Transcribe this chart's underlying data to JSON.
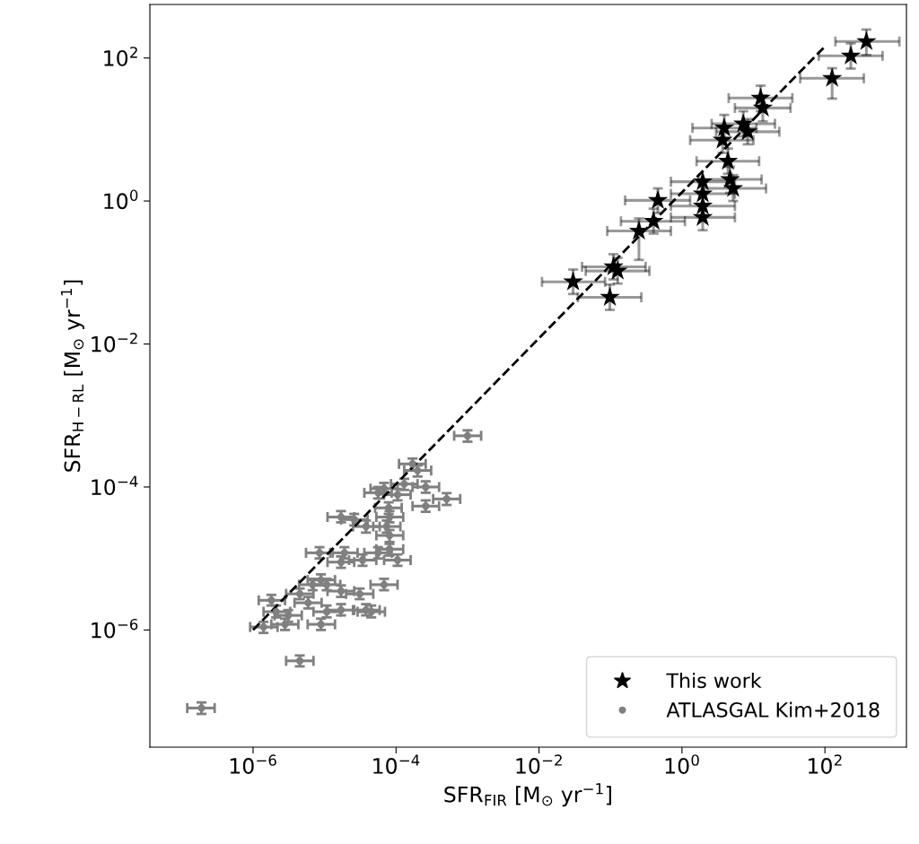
{
  "chart_data": {
    "type": "scatter",
    "xlabel": "SFR$_{FIR}$ [M$_{⊙}$ yr$^{−1}$]",
    "ylabel": "SFR$_{H−RL}$ [M$_{⊙}$ yr$^{−1}$]",
    "log": "xy",
    "legend": "bottom right",
    "xlim": [
      3.6e-08,
      1380
    ],
    "ylim": [
      2.3e-08,
      560
    ],
    "xticks": [
      {
        "value": 1e-06,
        "label": "10$^{−6}$"
      },
      {
        "value": 0.0001,
        "label": "10$^{−4}$"
      },
      {
        "value": 0.01,
        "label": "10$^{−2}$"
      },
      {
        "value": 1,
        "label": "10$^{0}$"
      },
      {
        "value": 100,
        "label": "10$^{2}$"
      }
    ],
    "yticks": [
      {
        "value": 1e-06,
        "label": "10$^{−6}$"
      },
      {
        "value": 0.0001,
        "label": "10$^{−4}$"
      },
      {
        "value": 0.01,
        "label": "10$^{−2}$"
      },
      {
        "value": 1,
        "label": "10$^{0}$"
      },
      {
        "value": 100,
        "label": "10$^{2}$"
      }
    ],
    "series": [
      {
        "name": "ATLASGAL Kim+2018",
        "marker": "circle",
        "color": "#808080",
        "x": [
          0.001,
          0.00017,
          0.0002,
          0.00013,
          0.00026,
          0.00051,
          0.00026,
          5.6e-05,
          6.8e-05,
          0.000105,
          7.9e-05,
          8.1e-05,
          1.7e-05,
          2.6e-05,
          3.8e-05,
          7.4e-05,
          8.1e-05,
          8.5e-06,
          1.9e-05,
          3.4e-05,
          5.6e-05,
          8.1e-05,
          0.000105,
          1.7e-05,
          8.9e-06,
          1.07e-05,
          6.8e-06,
          1.7e-05,
          6.8e-05,
          3.1e-05,
          4.5e-06,
          1.8e-06,
          2.1e-06,
          3.1e-06,
          2.8e-06,
          1.4e-06,
          8.9e-06,
          1.07e-05,
          1.7e-05,
          3.8e-05,
          4.5e-05,
          4.5e-06,
          1.9e-07,
          5.9e-06
        ],
        "values": [
          0.00052,
          0.00021,
          0.00017,
          0.00011,
          0.0001,
          6.8e-05,
          5.4e-05,
          8.3e-05,
          9.5e-05,
          7.8e-05,
          5.1e-05,
          3.8e-05,
          3.8e-05,
          3.5e-05,
          2.8e-05,
          2.8e-05,
          2.1e-05,
          1.2e-05,
          1.2e-05,
          9.5e-06,
          1.2e-05,
          1.35e-05,
          9.5e-06,
          8.9e-06,
          5e-06,
          4.3e-06,
          4.3e-06,
          3.5e-06,
          4.3e-06,
          3.2e-06,
          3.2e-06,
          2.6e-06,
          1.8e-06,
          1.6e-06,
          1.2e-06,
          1.1e-06,
          1.2e-06,
          1.8e-06,
          1.9e-06,
          1.9e-06,
          1.8e-06,
          3.7e-07,
          8.1e-08,
          2.4e-06
        ],
        "xerrors": [
          [
            0.00065,
            0.00155
          ],
          [
            0.00011,
            0.00026
          ],
          [
            0.00013,
            0.00031
          ],
          [
            8.5e-05,
            0.0002
          ],
          [
            0.00017,
            0.0004
          ],
          [
            0.00033,
            0.00079
          ],
          [
            0.00017,
            0.0004
          ],
          [
            3.6e-05,
            8.7e-05
          ],
          [
            4.4e-05,
            0.000105
          ],
          [
            6.8e-05,
            0.00016
          ],
          [
            5.1e-05,
            0.00012
          ],
          [
            5.3e-05,
            0.000126
          ],
          [
            1.1e-05,
            2.6e-05
          ],
          [
            1.7e-05,
            4e-05
          ],
          [
            2.5e-05,
            5.9e-05
          ],
          [
            4.8e-05,
            0.000115
          ],
          [
            5.3e-05,
            0.000126
          ],
          [
            5.5e-06,
            1.3e-05
          ],
          [
            1.2e-05,
            2.9e-05
          ],
          [
            2.2e-05,
            5.3e-05
          ],
          [
            3.6e-05,
            8.7e-05
          ],
          [
            5.3e-05,
            0.000126
          ],
          [
            6.8e-05,
            0.00016
          ],
          [
            1.1e-05,
            2.6e-05
          ],
          [
            5.8e-06,
            1.4e-05
          ],
          [
            7e-06,
            1.66e-05
          ],
          [
            4.4e-06,
            1.05e-05
          ],
          [
            1.1e-05,
            2.6e-05
          ],
          [
            4.4e-05,
            0.000105
          ],
          [
            2e-05,
            4.8e-05
          ],
          [
            2.9e-06,
            7e-06
          ],
          [
            1.2e-06,
            2.8e-06
          ],
          [
            1.4e-06,
            3.3e-06
          ],
          [
            2e-06,
            4.8e-06
          ],
          [
            1.8e-06,
            4.3e-06
          ],
          [
            9.1e-07,
            2.2e-06
          ],
          [
            5.8e-06,
            1.4e-05
          ],
          [
            7e-06,
            1.66e-05
          ],
          [
            1.1e-05,
            2.6e-05
          ],
          [
            2.5e-05,
            5.9e-05
          ],
          [
            2.9e-05,
            7e-05
          ],
          [
            2.9e-06,
            7e-06
          ],
          [
            1.2e-07,
            2.9e-07
          ],
          [
            3.8e-06,
            9.1e-06
          ]
        ],
        "errors": [
          [
            0.00043,
            0.00062
          ],
          [
            0.00017,
            0.00025
          ],
          [
            0.00014,
            0.0002
          ],
          [
            9.1e-05,
            0.00013
          ],
          [
            8.3e-05,
            0.00012
          ],
          [
            5.6e-05,
            8.2e-05
          ],
          [
            4.5e-05,
            6.5e-05
          ],
          [
            6.9e-05,
            0.0001
          ],
          [
            7.9e-05,
            0.000114
          ],
          [
            6.5e-05,
            9.4e-05
          ],
          [
            4.2e-05,
            6.1e-05
          ],
          [
            3.2e-05,
            4.6e-05
          ],
          [
            3.2e-05,
            4.6e-05
          ],
          [
            2.9e-05,
            4.2e-05
          ],
          [
            2.3e-05,
            3.4e-05
          ],
          [
            2.3e-05,
            3.4e-05
          ],
          [
            1.7e-05,
            2.5e-05
          ],
          [
            1e-05,
            1.44e-05
          ],
          [
            1e-05,
            1.44e-05
          ],
          [
            7.9e-06,
            1.14e-05
          ],
          [
            1e-05,
            1.44e-05
          ],
          [
            1.1e-05,
            1.6e-05
          ],
          [
            7.9e-06,
            1.14e-05
          ],
          [
            7.4e-06,
            1.07e-05
          ],
          [
            4.2e-06,
            6e-06
          ],
          [
            3.6e-06,
            5.2e-06
          ],
          [
            3.6e-06,
            5.2e-06
          ],
          [
            2.9e-06,
            4.2e-06
          ],
          [
            3.6e-06,
            5.2e-06
          ],
          [
            2.7e-06,
            3.8e-06
          ],
          [
            2.7e-06,
            3.8e-06
          ],
          [
            2.2e-06,
            3.1e-06
          ],
          [
            1.5e-06,
            2.2e-06
          ],
          [
            1.3e-06,
            1.9e-06
          ],
          [
            1e-06,
            1.44e-06
          ],
          [
            9.1e-07,
            1.3e-06
          ],
          [
            1e-06,
            1.44e-06
          ],
          [
            1.5e-06,
            2.2e-06
          ],
          [
            1.6e-06,
            2.3e-06
          ],
          [
            1.6e-06,
            2.3e-06
          ],
          [
            1.5e-06,
            2.2e-06
          ],
          [
            3.1e-07,
            4.4e-07
          ],
          [
            6.7e-08,
            9.7e-08
          ],
          [
            2e-06,
            2.9e-06
          ]
        ]
      },
      {
        "type": "line",
        "line_style": "dashed",
        "marker": "none",
        "color": "#000000",
        "x": [
          1e-06,
          100
        ],
        "values": [
          1e-06,
          145
        ]
      },
      {
        "name": "This work",
        "marker": "star",
        "color": "#000000",
        "x": [
          380,
          230,
          126,
          12.6,
          13.5,
          7.2,
          8.3,
          3.9,
          3.7,
          4.4,
          4.7,
          5.2,
          1.95,
          1.95,
          1.95,
          1.95,
          0.46,
          0.4,
          0.25,
          0.11,
          0.126,
          0.03,
          0.098
        ],
        "values": [
          170,
          107,
          52,
          27.5,
          20,
          12,
          9.3,
          10.5,
          7.1,
          3.6,
          2.0,
          1.5,
          1.86,
          1.26,
          0.85,
          0.59,
          1.02,
          0.52,
          0.38,
          0.12,
          0.105,
          0.074,
          0.045
        ],
        "xerrors": [
          [
            140,
            1100
          ],
          [
            82,
            640
          ],
          [
            45,
            350
          ],
          [
            4.5,
            35
          ],
          [
            5.5,
            33
          ],
          [
            2.6,
            20
          ],
          [
            3.0,
            23
          ],
          [
            1.4,
            11
          ],
          [
            1.3,
            10
          ],
          [
            1.6,
            12
          ],
          [
            1.7,
            13
          ],
          [
            1.9,
            15
          ],
          [
            0.7,
            5.5
          ],
          [
            0.7,
            5.5
          ],
          [
            0.7,
            5.5
          ],
          [
            0.7,
            5.5
          ],
          [
            0.16,
            1.3
          ],
          [
            0.14,
            1.1
          ],
          [
            0.09,
            0.7
          ],
          [
            0.04,
            0.31
          ],
          [
            0.045,
            0.35
          ],
          [
            0.011,
            0.084
          ],
          [
            0.035,
            0.27
          ]
        ],
        "errors": [
          [
            110,
            250
          ],
          [
            71,
            160
          ],
          [
            27,
            72
          ],
          [
            18,
            41
          ],
          [
            13,
            30
          ],
          [
            8,
            18
          ],
          [
            6.2,
            14
          ],
          [
            7,
            16
          ],
          [
            4.7,
            11
          ],
          [
            2.4,
            5.4
          ],
          [
            1.3,
            3.0
          ],
          [
            1.0,
            2.3
          ],
          null,
          null,
          null,
          [
            0.39,
            0.89
          ],
          [
            0.68,
            1.5
          ],
          [
            0.35,
            0.78
          ],
          [
            0.15,
            0.57
          ],
          [
            0.08,
            0.18
          ],
          [
            0.07,
            0.16
          ],
          [
            0.05,
            0.11
          ],
          [
            0.03,
            0.068
          ]
        ]
      }
    ]
  }
}
